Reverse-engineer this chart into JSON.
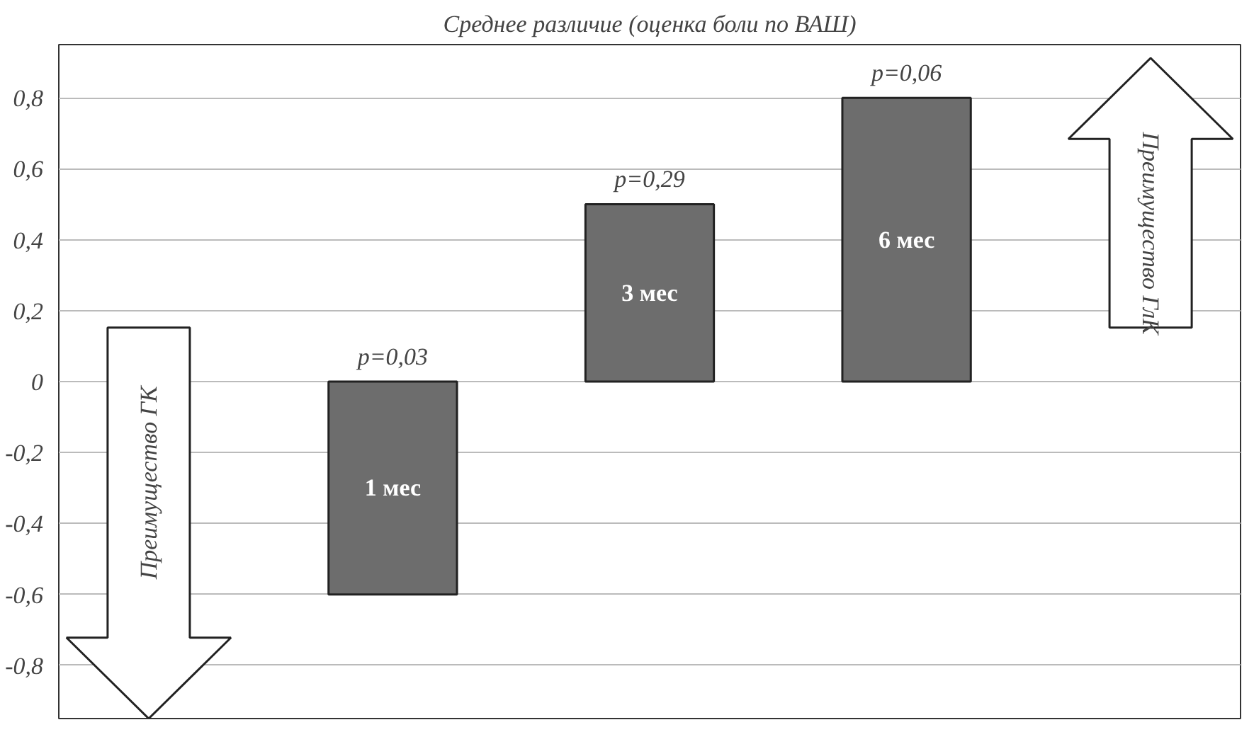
{
  "chart_data": {
    "type": "bar",
    "title": "Среднее различие (оценка боли по ВАШ)",
    "categories": [
      "1 мес",
      "3 мес",
      "6 мес"
    ],
    "values": [
      -0.6,
      0.5,
      0.8
    ],
    "color": "#6d6d6d",
    "ylim": [
      -0.95,
      0.95
    ],
    "yticks": [
      {
        "value": -0.8,
        "label": "-0,8"
      },
      {
        "value": -0.6,
        "label": "-0,6"
      },
      {
        "value": -0.4,
        "label": "-0,4"
      },
      {
        "value": -0.2,
        "label": "-0,2"
      },
      {
        "value": 0,
        "label": "0"
      },
      {
        "value": 0.2,
        "label": "0,2"
      },
      {
        "value": 0.4,
        "label": "0,4"
      },
      {
        "value": 0.6,
        "label": "0,6"
      },
      {
        "value": 0.8,
        "label": "0,8"
      }
    ],
    "grid": "y",
    "tick_labels": "y",
    "annotations": [
      "p=0,03",
      "p=0,29",
      "p=0,06",
      "Преимущество ГК",
      "Преимущество ГлК"
    ]
  }
}
